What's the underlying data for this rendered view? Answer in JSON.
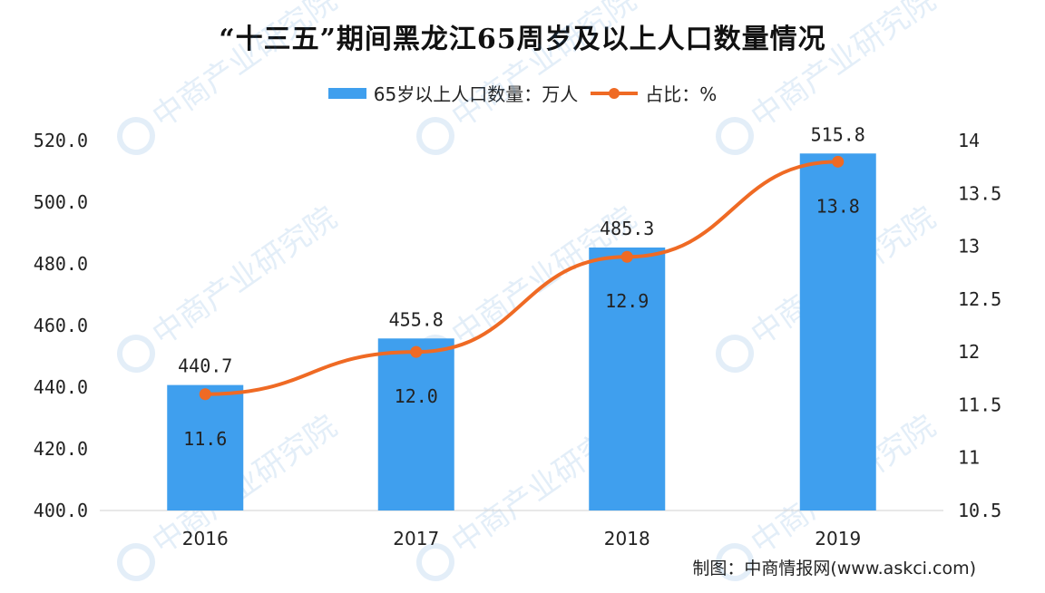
{
  "title": "“十三五”期间黑龙江65周岁及以上人口数量情况",
  "credit": "制图：中商情报网(www.askci.com)",
  "watermark_text": "中商产业研究院",
  "colors": {
    "bar": "#3f9fee",
    "line": "#ef6a24",
    "text": "#222222"
  },
  "chart_data": {
    "type": "bar",
    "categories": [
      "2016",
      "2017",
      "2018",
      "2019"
    ],
    "series": [
      {
        "name": "65岁以上人口数量：万人",
        "type": "bar",
        "axis": "left",
        "values": [
          440.7,
          455.8,
          485.3,
          515.8
        ],
        "labels": [
          "440.7",
          "455.8",
          "485.3",
          "515.8"
        ]
      },
      {
        "name": "占比：%",
        "type": "line",
        "axis": "right",
        "values": [
          11.6,
          12.0,
          12.9,
          13.8
        ],
        "labels": [
          "11.6",
          "12.0",
          "12.9",
          "13.8"
        ]
      }
    ],
    "y_left": {
      "ylim": [
        400,
        520
      ],
      "ticks": [
        "400.0",
        "420.0",
        "440.0",
        "460.0",
        "480.0",
        "500.0",
        "520.0"
      ],
      "tick_values": [
        400,
        420,
        440,
        460,
        480,
        500,
        520
      ]
    },
    "y_right": {
      "ylim": [
        10.5,
        14
      ],
      "ticks": [
        "10.5",
        "11",
        "11.5",
        "12",
        "12.5",
        "13",
        "13.5",
        "14"
      ],
      "tick_values": [
        10.5,
        11,
        11.5,
        12,
        12.5,
        13,
        13.5,
        14
      ]
    },
    "grid": false,
    "legend_position": "top"
  }
}
